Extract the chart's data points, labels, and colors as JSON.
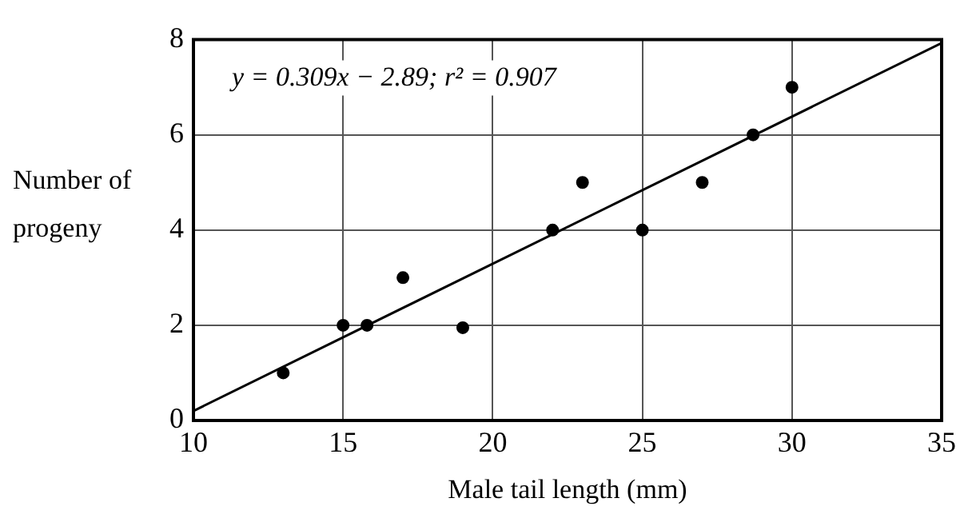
{
  "chart_data": {
    "type": "scatter",
    "xlabel": "Male tail length (mm)",
    "ylabel": "Number of progeny",
    "xlim": [
      10,
      35
    ],
    "xticks": [
      10,
      15,
      20,
      25,
      30,
      35
    ],
    "ylim": [
      0,
      8
    ],
    "yticks": [
      0,
      2,
      4,
      6,
      8
    ],
    "grid": true,
    "legend": false,
    "marker": "circle",
    "annotations": [
      "y = 0.309x − 2.89; r² = 0.907"
    ],
    "series": [
      {
        "color": "#000000",
        "x": [
          13,
          15,
          15.8,
          17,
          19,
          22,
          23,
          25,
          27,
          28.7,
          30
        ],
        "values": [
          1,
          2,
          2,
          3,
          1.95,
          4,
          5,
          4,
          5,
          6,
          7
        ]
      },
      {
        "type": "line",
        "color": "#000000",
        "marker": "none",
        "x": [
          10,
          35
        ],
        "values": [
          0.2,
          7.93
        ]
      }
    ]
  }
}
